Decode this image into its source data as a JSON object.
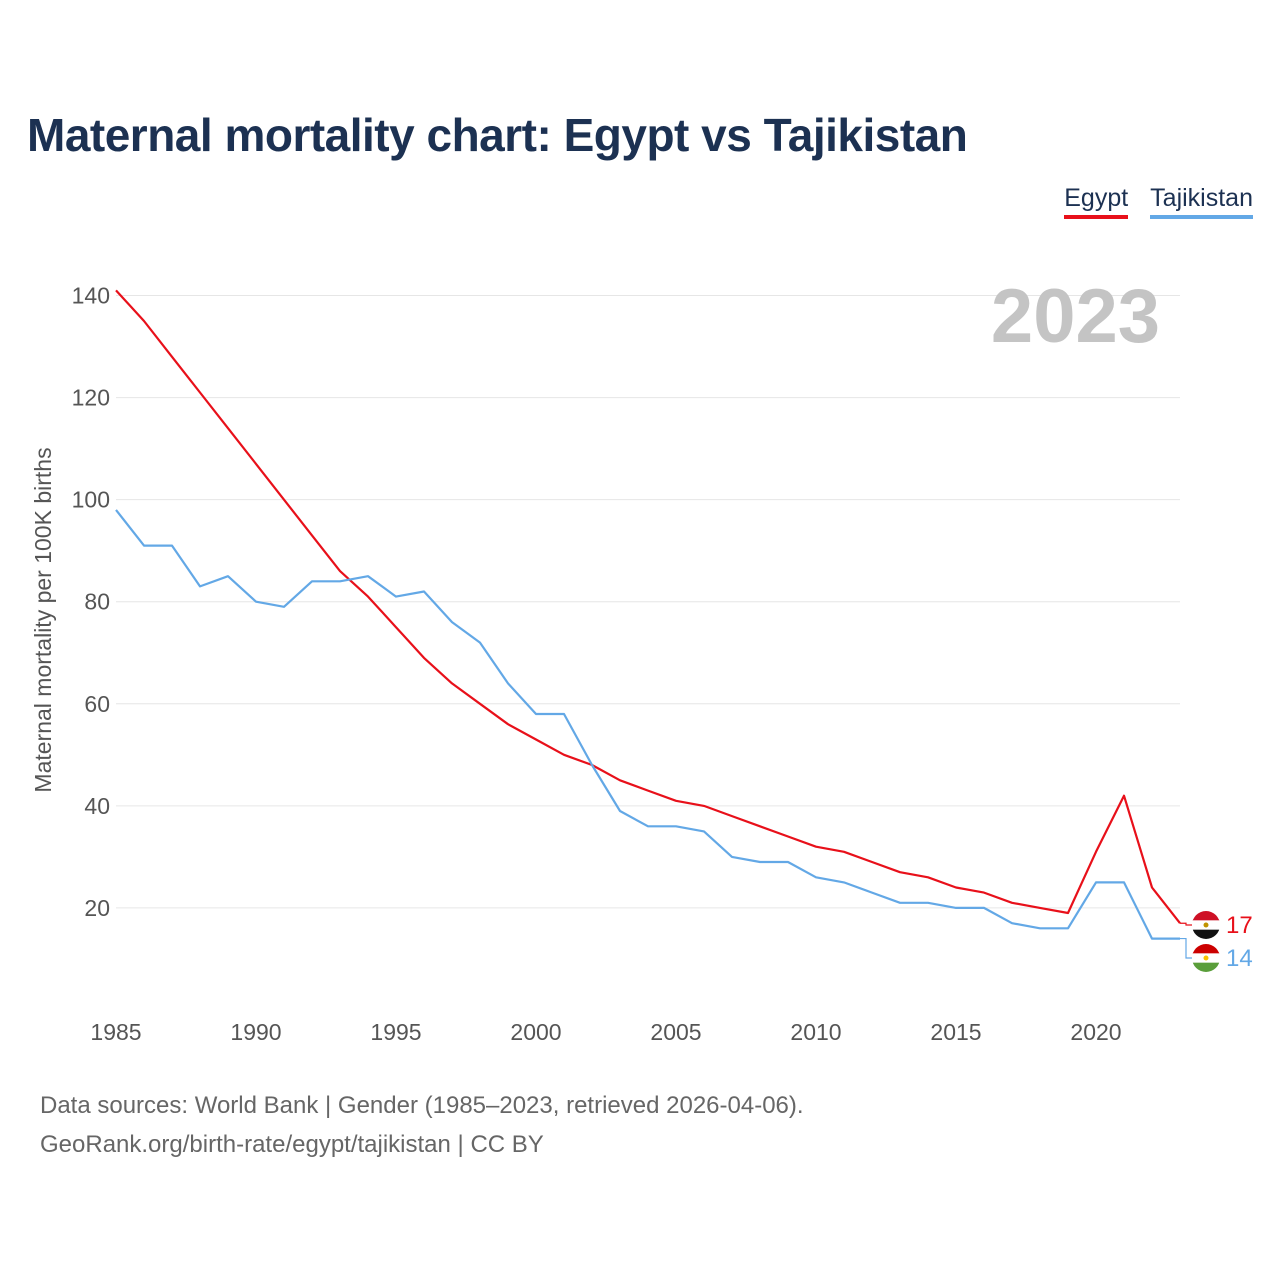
{
  "title": "Maternal mortality chart: Egypt vs Tajikistan",
  "legend": [
    {
      "label": "Egypt",
      "color": "#e8101a"
    },
    {
      "label": "Tajikistan",
      "color": "#63a8e6"
    }
  ],
  "footer": {
    "line1": "Data sources: World Bank | Gender (1985–2023, retrieved 2026-04-06).",
    "line2": "GeoRank.org/birth-rate/egypt/tajikistan | CC BY"
  },
  "chart_data": {
    "type": "line",
    "title": "Maternal mortality chart: Egypt vs Tajikistan",
    "xlabel": "",
    "ylabel": "Maternal mortality per 100K births",
    "year_label": "2023",
    "xlim": [
      1985,
      2023
    ],
    "ylim": [
      0,
      145
    ],
    "x_ticks": [
      1985,
      1990,
      1995,
      2000,
      2005,
      2010,
      2015,
      2020
    ],
    "y_ticks": [
      20,
      40,
      60,
      80,
      100,
      120,
      140
    ],
    "grid": true,
    "legend_position": "top-right",
    "x": [
      1985,
      1986,
      1987,
      1988,
      1989,
      1990,
      1991,
      1992,
      1993,
      1994,
      1995,
      1996,
      1997,
      1998,
      1999,
      2000,
      2001,
      2002,
      2003,
      2004,
      2005,
      2006,
      2007,
      2008,
      2009,
      2010,
      2011,
      2012,
      2013,
      2014,
      2015,
      2016,
      2017,
      2018,
      2019,
      2020,
      2021,
      2022,
      2023
    ],
    "series": [
      {
        "name": "Egypt",
        "color": "#e8101a",
        "end_label": "17",
        "values": [
          141,
          135,
          128,
          121,
          114,
          107,
          100,
          93,
          86,
          81,
          75,
          69,
          64,
          60,
          56,
          53,
          50,
          48,
          45,
          43,
          41,
          40,
          38,
          36,
          34,
          32,
          31,
          29,
          27,
          26,
          24,
          23,
          21,
          20,
          19,
          31,
          42,
          24,
          17
        ]
      },
      {
        "name": "Tajikistan",
        "color": "#63a8e6",
        "end_label": "14",
        "values": [
          98,
          91,
          91,
          83,
          85,
          80,
          79,
          84,
          84,
          85,
          81,
          82,
          76,
          72,
          64,
          58,
          58,
          48,
          39,
          36,
          36,
          35,
          30,
          29,
          29,
          26,
          25,
          23,
          21,
          21,
          20,
          20,
          17,
          16,
          16,
          25,
          25,
          14,
          14
        ]
      }
    ]
  }
}
